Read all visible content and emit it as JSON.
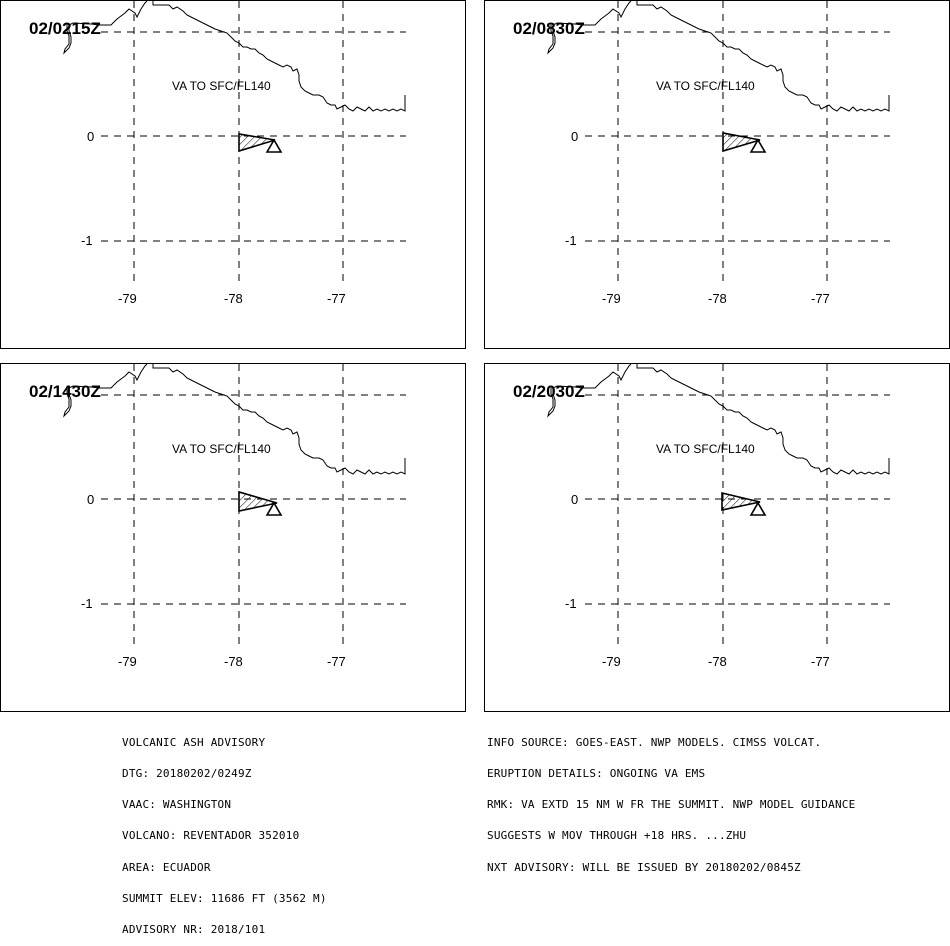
{
  "panels": [
    {
      "time": "02/0215Z",
      "ash_label": "VA TO SFC/FL140"
    },
    {
      "time": "02/0830Z",
      "ash_label": "VA TO SFC/FL140"
    },
    {
      "time": "02/1430Z",
      "ash_label": "VA TO SFC/FL140"
    },
    {
      "time": "02/2030Z",
      "ash_label": "VA TO SFC/FL140"
    }
  ],
  "map": {
    "lon_ticks": [
      "-79",
      "-78",
      "-77"
    ],
    "lat_ticks": [
      "0",
      "-1"
    ],
    "volcano_symbol": "volcano-triangle-icon",
    "coastline": "black coast line",
    "ash_fill": "hatched"
  },
  "advisory_left": [
    "VOLCANIC ASH ADVISORY",
    "DTG: 20180202/0249Z",
    "VAAC: WASHINGTON",
    "VOLCANO: REVENTADOR 352010",
    "AREA: ECUADOR",
    "SUMMIT ELEV: 11686 FT (3562 M)",
    "ADVISORY NR: 2018/101"
  ],
  "advisory_right": [
    "INFO SOURCE: GOES-EAST. NWP MODELS. CIMSS VOLCAT.",
    "ERUPTION DETAILS: ONGOING VA EMS",
    "RMK: VA EXTD 15 NM W FR THE SUMMIT. NWP MODEL GUIDANCE",
    "SUGGESTS W MOV THROUGH +18 HRS. ...ZHU",
    "NXT ADVISORY: WILL BE ISSUED BY 20180202/0845Z"
  ]
}
